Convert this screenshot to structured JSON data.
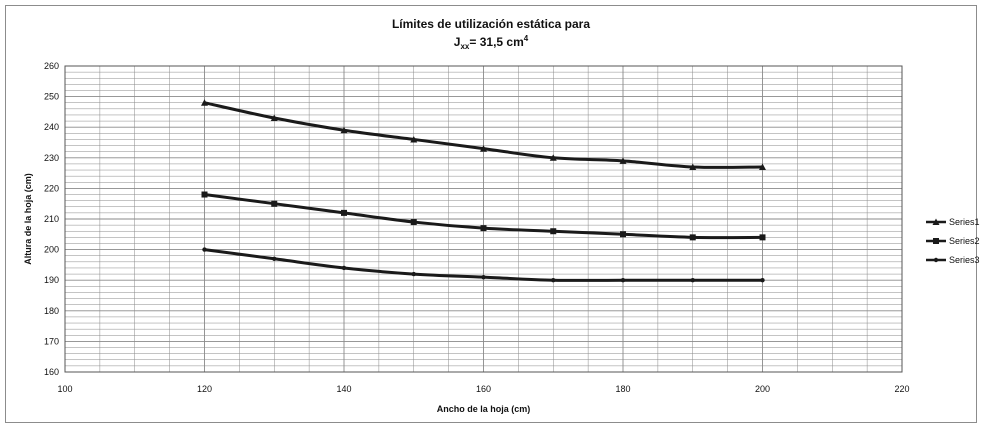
{
  "chart_data": {
    "type": "line",
    "title": "Límites de utilización estática para",
    "subtitle": {
      "prefix": "J",
      "subscript": "xx",
      "suffix": "= 31,5 cm",
      "superscript": "4"
    },
    "xlabel": "Ancho de la hoja (cm)",
    "ylabel": "Altura de la hoja (cm)",
    "xlim": [
      100,
      220
    ],
    "ylim": [
      160,
      260
    ],
    "x_ticks": [
      100,
      120,
      140,
      160,
      180,
      200,
      220
    ],
    "y_ticks": [
      160,
      170,
      180,
      190,
      200,
      210,
      220,
      230,
      240,
      250,
      260
    ],
    "grid": true,
    "legend_position": "right",
    "x": [
      120,
      130,
      140,
      150,
      160,
      170,
      180,
      190,
      200
    ],
    "series": [
      {
        "name": "Series1",
        "values": [
          248,
          243,
          239,
          236,
          233,
          230,
          229,
          227,
          227
        ],
        "marker": "triangle"
      },
      {
        "name": "Series2",
        "values": [
          218,
          215,
          212,
          209,
          207,
          206,
          205,
          204,
          204
        ],
        "marker": "square"
      },
      {
        "name": "Series3",
        "values": [
          200,
          197,
          194,
          192,
          191,
          190,
          190,
          190,
          190
        ],
        "marker": "circle"
      }
    ],
    "line_color": "#1a1a1a",
    "grid_color": "#8a8a8a"
  }
}
